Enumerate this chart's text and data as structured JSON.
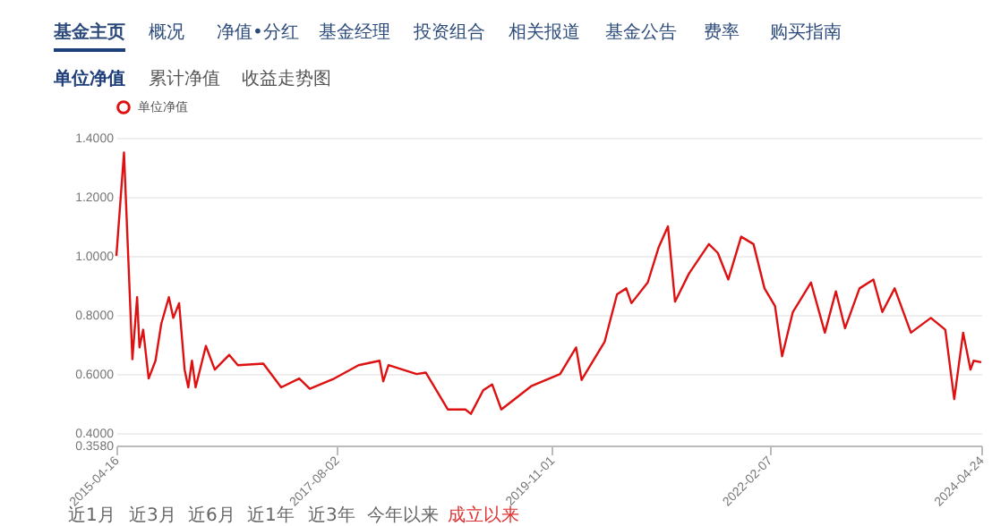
{
  "chart_data": {
    "type": "line",
    "annotations": [
      "基金主页",
      "概况",
      "净值•分红",
      "基金经理",
      "投资组合",
      "相关报道",
      "基金公告",
      "费率",
      "购买指南",
      "单位净值",
      "累计净值",
      "收益走势图",
      "近1月",
      "近3月",
      "近6月",
      "近1年",
      "近3年",
      "今年以来",
      "成立以来"
    ],
    "x": [
      "2015-04-16",
      "2015-05-15",
      "2015-06-16",
      "2015-07-04",
      "2015-07-13",
      "2015-07-27",
      "2015-08-17",
      "2015-09-12",
      "2015-10-04",
      "2015-11-02",
      "2015-11-19",
      "2015-12-11",
      "2016-01-01",
      "2016-01-15",
      "2016-01-29",
      "2016-02-12",
      "2016-03-22",
      "2016-04-25",
      "2016-06-19",
      "2016-07-22",
      "2016-10-27",
      "2017-01-03",
      "2017-03-13",
      "2017-04-22",
      "2017-07-25",
      "2017-10-25",
      "2018-01-13",
      "2018-01-27",
      "2018-02-16",
      "2018-06-03",
      "2018-07-08",
      "2018-09-30",
      "2018-12-06",
      "2018-12-27",
      "2019-02-12",
      "2019-03-18",
      "2019-04-22",
      "2019-08-16",
      "2019-12-02",
      "2020-02-01",
      "2020-02-22",
      "2020-05-20",
      "2020-07-06",
      "2020-08-10",
      "2020-08-30",
      "2020-10-31",
      "2020-12-12",
      "2021-01-16",
      "2021-02-12",
      "2021-04-06",
      "2021-06-21",
      "2021-07-25",
      "2021-09-03",
      "2021-10-22",
      "2021-12-08",
      "2022-01-19",
      "2022-02-28",
      "2022-03-27",
      "2022-05-07",
      "2022-07-15",
      "2022-09-06",
      "2022-10-18",
      "2022-11-22",
      "2023-01-16",
      "2023-03-10",
      "2023-04-13",
      "2023-05-30",
      "2023-07-31",
      "2023-10-15",
      "2023-12-09",
      "2024-01-12",
      "2024-02-15",
      "2024-03-14",
      "2024-03-26",
      "2024-04-24"
    ],
    "series": [
      {
        "name": "单位净值",
        "color": "#dd1111",
        "values": [
          1.0,
          1.35,
          0.65,
          0.86,
          0.69,
          0.75,
          0.585,
          0.645,
          0.77,
          0.86,
          0.79,
          0.84,
          0.615,
          0.555,
          0.645,
          0.555,
          0.695,
          0.615,
          0.665,
          0.63,
          0.635,
          0.555,
          0.585,
          0.55,
          0.585,
          0.63,
          0.645,
          0.575,
          0.63,
          0.6,
          0.605,
          0.48,
          0.48,
          0.465,
          0.545,
          0.565,
          0.48,
          0.56,
          0.6,
          0.69,
          0.58,
          0.71,
          0.87,
          0.89,
          0.84,
          0.91,
          1.03,
          1.1,
          0.845,
          0.94,
          1.04,
          1.01,
          0.92,
          1.065,
          1.04,
          0.89,
          0.83,
          0.66,
          0.81,
          0.91,
          0.74,
          0.88,
          0.755,
          0.89,
          0.92,
          0.81,
          0.89,
          0.74,
          0.79,
          0.75,
          0.515,
          0.74,
          0.615,
          0.645,
          0.64
        ]
      }
    ],
    "xlim": [
      "2015-04-16",
      "2024-04-24"
    ],
    "xticks": [
      "2015-04-16",
      "2017-08-02",
      "2019-11-01",
      "2022-02-07",
      "2024-04-24"
    ],
    "ylim": [
      0.358,
      1.4
    ],
    "yticks": [
      {
        "value": 0.358,
        "label": "0.3580"
      },
      {
        "value": 0.4,
        "label": "0.4000"
      },
      {
        "value": 0.6,
        "label": "0.6000"
      },
      {
        "value": 0.8,
        "label": "0.8000"
      },
      {
        "value": 1.0,
        "label": "1.0000"
      },
      {
        "value": 1.2,
        "label": "1.2000"
      },
      {
        "value": 1.4,
        "label": "1.4000"
      }
    ],
    "grid": "y",
    "legend": "top",
    "line_style": "solid"
  }
}
